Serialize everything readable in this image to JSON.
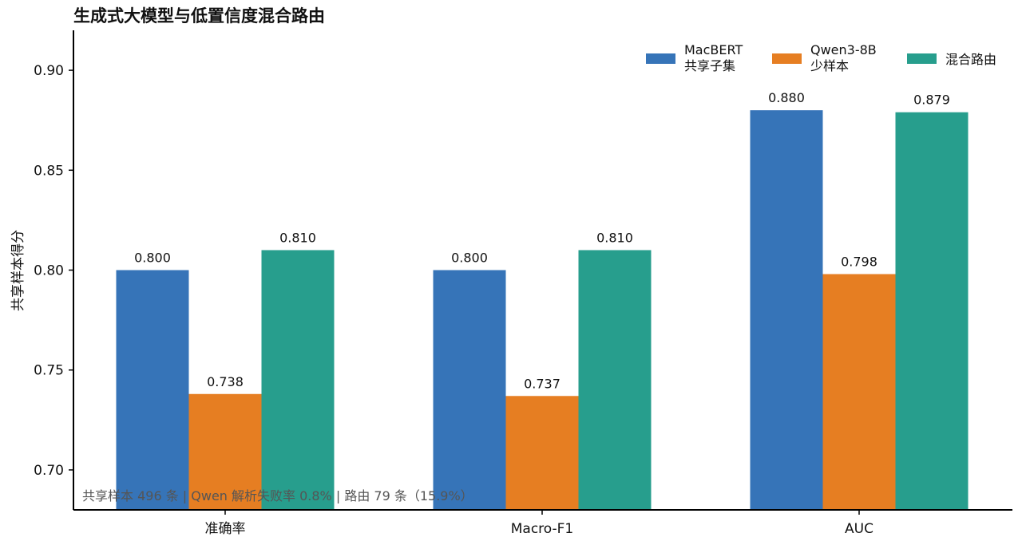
{
  "chart_data": {
    "type": "bar",
    "title": "生成式大模型与低置信度混合路由",
    "ylabel": "共享样本得分",
    "xlabel": "",
    "categories": [
      "准确率",
      "Macro-F1",
      "AUC"
    ],
    "series": [
      {
        "name_lines": [
          "MacBERT",
          "共享子集"
        ],
        "color": "#3674b8",
        "values": [
          0.8,
          0.8,
          0.88
        ],
        "labels": [
          "0.800",
          "0.800",
          "0.880"
        ]
      },
      {
        "name_lines": [
          "Qwen3-8B",
          "少样本"
        ],
        "color": "#e67e22",
        "values": [
          0.738,
          0.737,
          0.798
        ],
        "labels": [
          "0.738",
          "0.737",
          "0.798"
        ]
      },
      {
        "name_lines": [
          "混合路由"
        ],
        "color": "#279e8d",
        "values": [
          0.81,
          0.81,
          0.879
        ],
        "labels": [
          "0.810",
          "0.810",
          "0.879"
        ]
      }
    ],
    "ylim": [
      0.68,
      0.92
    ],
    "yticks": [
      0.7,
      0.75,
      0.8,
      0.85,
      0.9
    ],
    "ytick_labels": [
      "0.70",
      "0.75",
      "0.80",
      "0.85",
      "0.90"
    ],
    "grid": false,
    "legend_position": "top-right",
    "annotation": "共享样本 496 条 | Qwen 解析失败率 0.8% | 路由 79 条（15.9%）"
  }
}
